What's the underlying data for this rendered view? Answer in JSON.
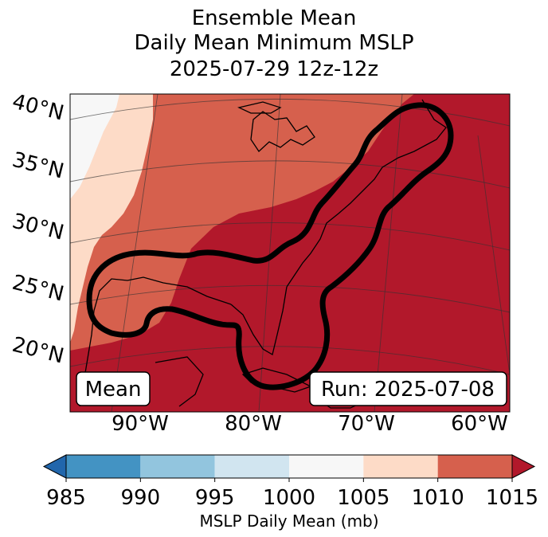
{
  "chart_data": {
    "type": "heatmap",
    "title_lines": [
      "Ensemble Mean",
      "Daily Mean Minimum MSLP",
      "2025-07-29 12z-12z"
    ],
    "lat_labels": [
      "40°N",
      "35°N",
      "30°N",
      "25°N",
      "20°N"
    ],
    "lon_labels": [
      "90°W",
      "80°W",
      "70°W",
      "60°W"
    ],
    "annotations": {
      "left": "Mean",
      "right": "Run: 2025-07-08"
    },
    "colorbar": {
      "label": "MSLP Daily Mean (mb)",
      "ticks": [
        "985",
        "990",
        "995",
        "1000",
        "1005",
        "1010",
        "1015"
      ],
      "bins": [
        {
          "range": [
            985,
            990
          ],
          "color": "#4393c3"
        },
        {
          "range": [
            990,
            995
          ],
          "color": "#92c5de"
        },
        {
          "range": [
            995,
            1000
          ],
          "color": "#d1e5f0"
        },
        {
          "range": [
            1000,
            1005
          ],
          "color": "#f7f7f7"
        },
        {
          "range": [
            1005,
            1010
          ],
          "color": "#fddbc7"
        },
        {
          "range": [
            1010,
            1015
          ],
          "color": "#d6604d"
        }
      ],
      "under_color": "#2166ac",
      "over_color": "#b2182b"
    },
    "units": "mb",
    "contour_color": "#000000"
  }
}
